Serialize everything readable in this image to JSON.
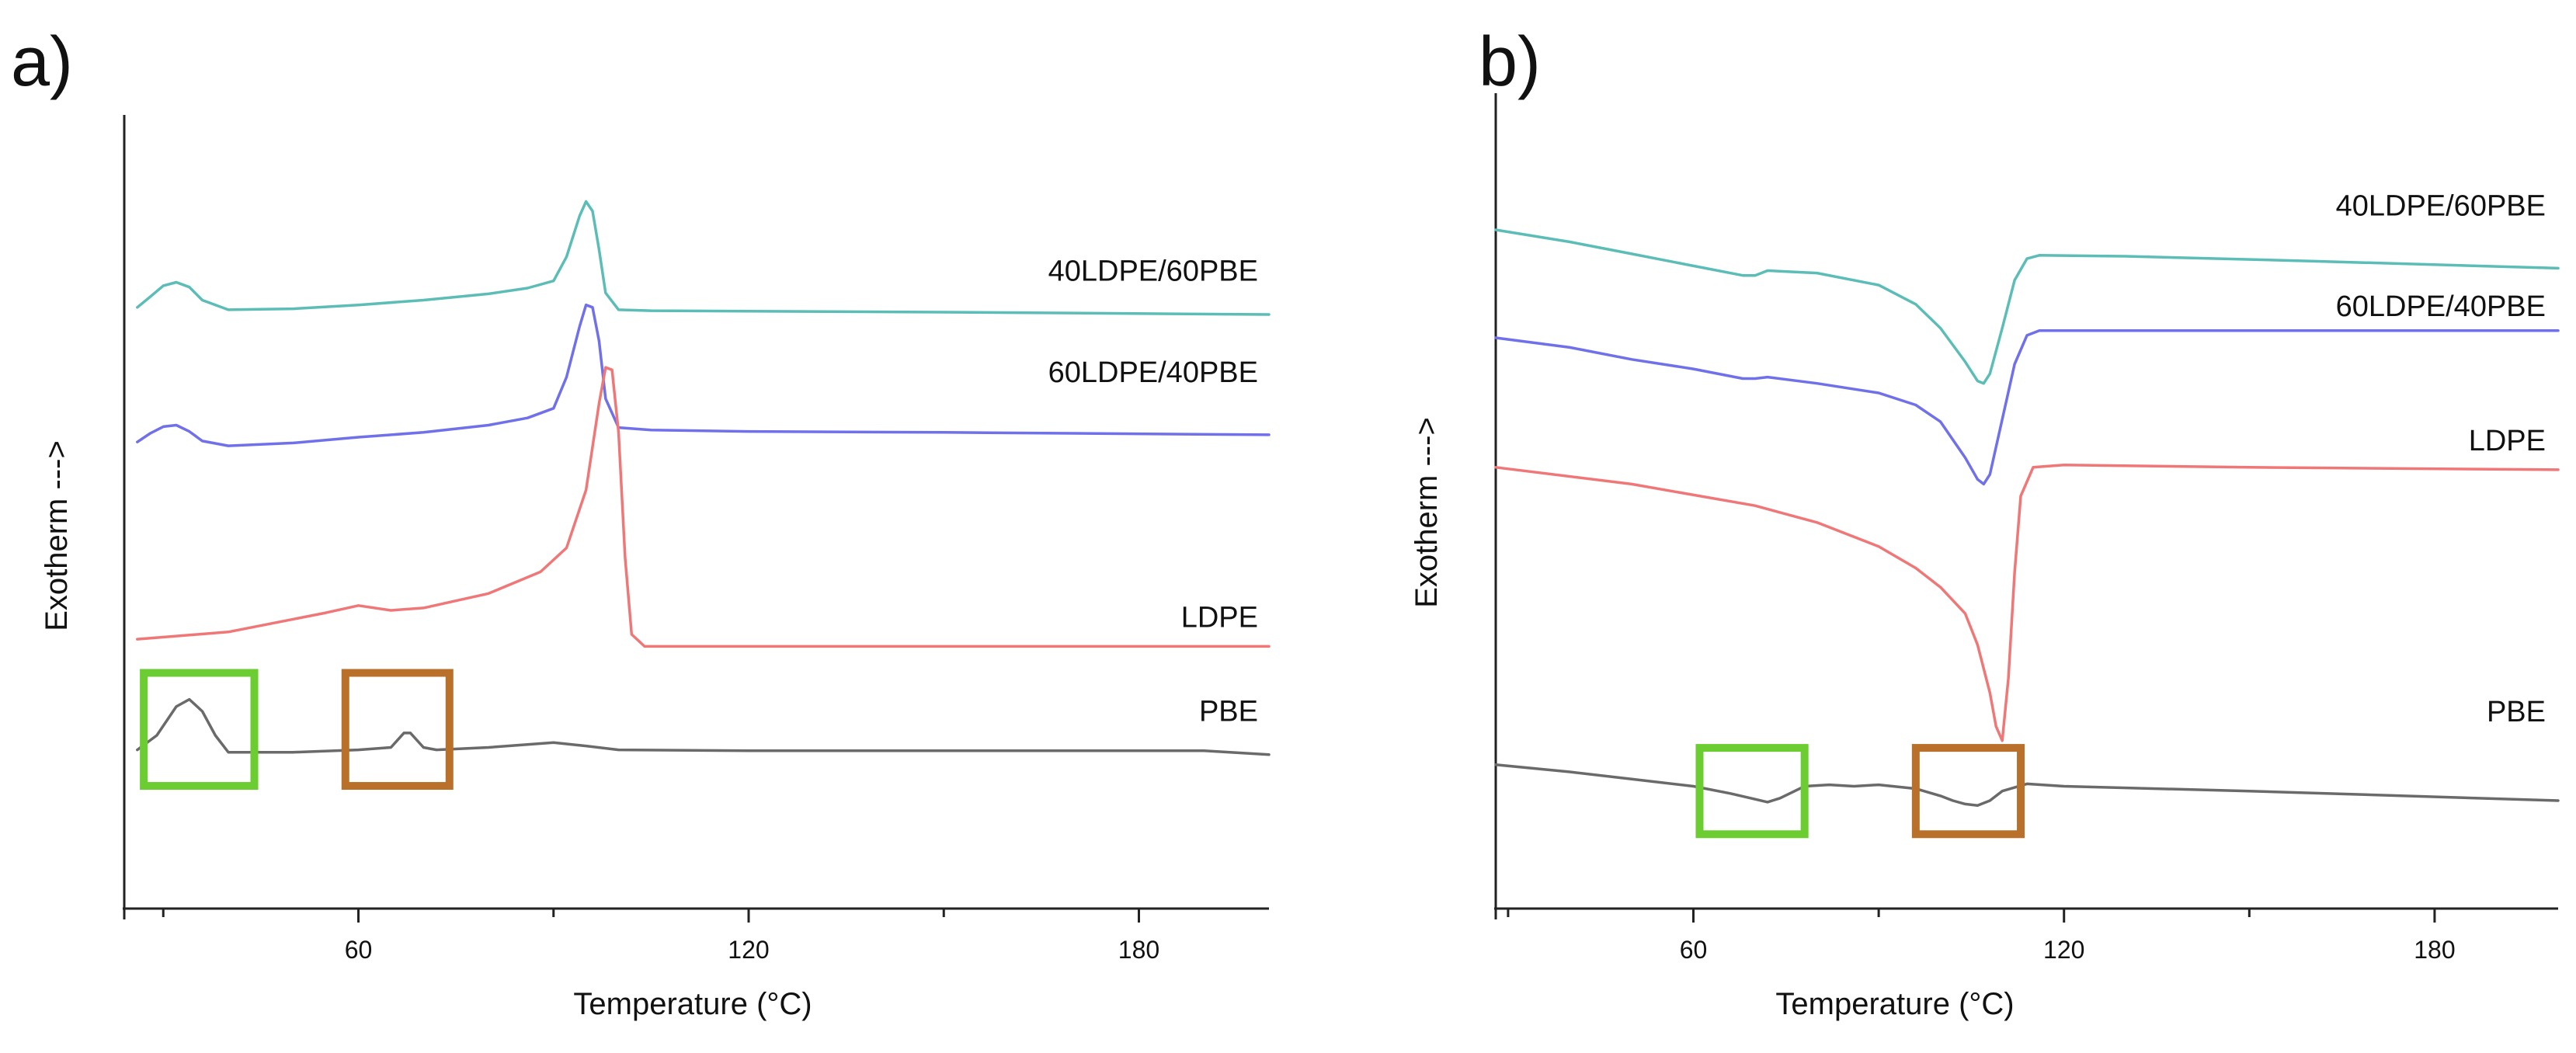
{
  "chart_data": [
    {
      "type": "line",
      "panel_label": "a)",
      "xlabel": "Temperature (°C)",
      "ylabel": "Exotherm --->",
      "xlim": [
        24,
        200
      ],
      "xticks": [
        60,
        120,
        180
      ],
      "grid": false,
      "colors": {
        "40LDPE/60PBE": "#5cbdb6",
        "60LDPE/40PBE": "#7070ea",
        "LDPE": "#f07777",
        "PBE": "#6a6a6a",
        "highlight_low": "#6bcd32",
        "highlight_high": "#b8702a"
      },
      "series": [
        {
          "name": "40LDPE/60PBE",
          "x": [
            26,
            28,
            30,
            32,
            34,
            36,
            40,
            50,
            60,
            70,
            80,
            86,
            90,
            92,
            94,
            95,
            96,
            97,
            98,
            100,
            105,
            120,
            150,
            200
          ],
          "y": [
            3.0,
            3.22,
            3.45,
            3.52,
            3.42,
            3.15,
            2.95,
            2.97,
            3.05,
            3.15,
            3.28,
            3.4,
            3.55,
            4.05,
            4.9,
            5.2,
            5.0,
            4.2,
            3.3,
            2.95,
            2.93,
            2.92,
            2.9,
            2.85
          ]
        },
        {
          "name": "60LDPE/40PBE",
          "x": [
            26,
            28,
            30,
            32,
            34,
            36,
            40,
            50,
            60,
            70,
            80,
            86,
            90,
            92,
            94,
            95,
            96,
            97,
            98,
            100,
            105,
            120,
            150,
            200
          ],
          "y": [
            0.2,
            0.38,
            0.52,
            0.55,
            0.42,
            0.22,
            0.12,
            0.18,
            0.3,
            0.4,
            0.55,
            0.7,
            0.9,
            1.55,
            2.6,
            3.05,
            3.0,
            2.3,
            1.1,
            0.5,
            0.45,
            0.42,
            0.4,
            0.35
          ]
        },
        {
          "name": "LDPE",
          "x": [
            26,
            40,
            55,
            60,
            65,
            70,
            80,
            88,
            92,
            95,
            97,
            98,
            99,
            100,
            101,
            102,
            104,
            108,
            120,
            150,
            200
          ],
          "y": [
            -3.9,
            -3.75,
            -3.35,
            -3.2,
            -3.3,
            -3.25,
            -2.95,
            -2.5,
            -2.0,
            -0.8,
            1.0,
            1.75,
            1.7,
            0.4,
            -2.2,
            -3.8,
            -4.05,
            -4.05,
            -4.05,
            -4.05,
            -4.05
          ]
        },
        {
          "name": "PBE",
          "x": [
            26,
            29,
            32,
            34,
            36,
            38,
            40,
            44,
            50,
            60,
            65,
            67,
            68,
            70,
            72,
            80,
            90,
            95,
            100,
            120,
            150,
            190,
            200
          ],
          "y": [
            -6.2,
            -5.9,
            -5.3,
            -5.15,
            -5.4,
            -5.9,
            -6.25,
            -6.25,
            -6.25,
            -6.2,
            -6.15,
            -5.85,
            -5.85,
            -6.15,
            -6.2,
            -6.15,
            -6.05,
            -6.12,
            -6.2,
            -6.22,
            -6.22,
            -6.22,
            -6.3
          ]
        }
      ],
      "annotations": [
        {
          "type": "box",
          "color": "highlight_low",
          "x": [
            27,
            44
          ],
          "y": [
            -6.95,
            -4.6
          ]
        },
        {
          "type": "box",
          "color": "highlight_high",
          "x": [
            58,
            74
          ],
          "y": [
            -6.95,
            -4.6
          ]
        }
      ],
      "series_label_positions": {
        "40LDPE/60PBE": 3.55,
        "60LDPE/40PBE": 1.45,
        "LDPE": -3.65,
        "PBE": -5.6
      },
      "ylim": [
        -9.5,
        7.0
      ]
    },
    {
      "type": "line",
      "panel_label": "b)",
      "xlabel": "Temperature (°C)",
      "ylabel": "Exotherm --->",
      "xlim": [
        28,
        200
      ],
      "xticks": [
        60,
        120,
        180
      ],
      "grid": false,
      "colors": {
        "40LDPE/60PBE": "#5cbdb6",
        "60LDPE/40PBE": "#7070ea",
        "LDPE": "#f07777",
        "PBE": "#6a6a6a",
        "highlight_low": "#6bcd32",
        "highlight_high": "#b8702a"
      },
      "series": [
        {
          "name": "40LDPE/60PBE",
          "x": [
            28,
            40,
            50,
            60,
            68,
            70,
            72,
            80,
            90,
            96,
            100,
            104,
            106,
            107,
            108,
            110,
            112,
            114,
            116,
            130,
            160,
            200
          ],
          "y": [
            2.15,
            1.9,
            1.65,
            1.4,
            1.2,
            1.2,
            1.3,
            1.25,
            1.0,
            0.6,
            0.1,
            -0.6,
            -1.0,
            -1.05,
            -0.85,
            0.1,
            1.1,
            1.55,
            1.62,
            1.6,
            1.5,
            1.35
          ]
        },
        {
          "name": "60LDPE/40PBE",
          "x": [
            28,
            40,
            50,
            60,
            68,
            70,
            72,
            80,
            90,
            96,
            100,
            104,
            106,
            107,
            108,
            110,
            112,
            114,
            116,
            130,
            160,
            200
          ],
          "y": [
            -0.1,
            -0.3,
            -0.55,
            -0.75,
            -0.95,
            -0.95,
            -0.92,
            -1.05,
            -1.25,
            -1.5,
            -1.85,
            -2.6,
            -3.05,
            -3.15,
            -2.95,
            -1.8,
            -0.65,
            -0.05,
            0.05,
            0.05,
            0.05,
            0.05
          ]
        },
        {
          "name": "LDPE",
          "x": [
            28,
            50,
            70,
            80,
            90,
            96,
            100,
            104,
            106,
            108,
            109,
            110,
            111,
            112,
            113,
            115,
            120,
            150,
            200
          ],
          "y": [
            -2.8,
            -3.15,
            -3.6,
            -3.95,
            -4.45,
            -4.9,
            -5.3,
            -5.85,
            -6.5,
            -7.5,
            -8.2,
            -8.5,
            -7.2,
            -5.0,
            -3.4,
            -2.8,
            -2.75,
            -2.8,
            -2.85
          ]
        },
        {
          "name": "PBE",
          "x": [
            28,
            40,
            50,
            60,
            66,
            70,
            72,
            74,
            78,
            82,
            86,
            90,
            96,
            100,
            102,
            104,
            106,
            108,
            110,
            114,
            120,
            150,
            200
          ],
          "y": [
            -9.0,
            -9.15,
            -9.3,
            -9.45,
            -9.6,
            -9.72,
            -9.78,
            -9.7,
            -9.45,
            -9.42,
            -9.45,
            -9.42,
            -9.5,
            -9.65,
            -9.75,
            -9.82,
            -9.85,
            -9.75,
            -9.55,
            -9.4,
            -9.45,
            -9.55,
            -9.75
          ]
        }
      ],
      "annotations": [
        {
          "type": "box",
          "color": "highlight_low",
          "x": [
            61,
            78
          ],
          "y": [
            -10.45,
            -8.65
          ]
        },
        {
          "type": "box",
          "color": "highlight_high",
          "x": [
            96,
            113
          ],
          "y": [
            -10.45,
            -8.65
          ]
        }
      ],
      "series_label_positions": {
        "40LDPE/60PBE": 2.45,
        "60LDPE/40PBE": 0.35,
        "LDPE": -2.45,
        "PBE": -8.1
      },
      "ylim": [
        -12.0,
        5.0
      ]
    }
  ]
}
